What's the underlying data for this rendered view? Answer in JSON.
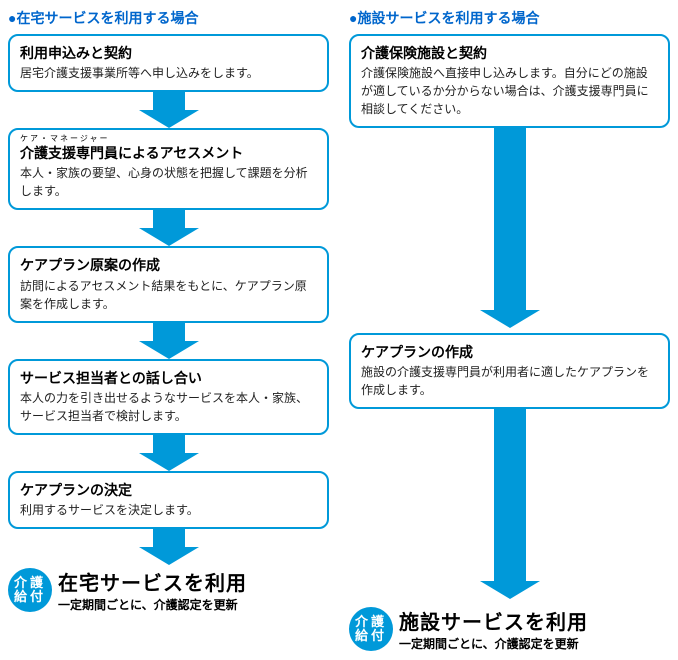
{
  "colors": {
    "blue": "#0099d9",
    "heading_blue": "#0066cc",
    "text": "#222222"
  },
  "left": {
    "heading": "●在宅サービスを利用する場合",
    "boxes": [
      {
        "title": "利用申込みと契約",
        "desc": "居宅介護支援事業所等へ申し込みをします。"
      },
      {
        "ruby": "ケア・マネージャー",
        "title_pre": "",
        "title_ruby": "介護支援専門員",
        "title_post": "によるアセスメント",
        "desc": "本人・家族の要望、心身の状態を把握して課題を分析します。"
      },
      {
        "title": "ケアプラン原案の作成",
        "desc": "訪問によるアセスメント結果をもとに、ケアプラン原案を作成します。"
      },
      {
        "title": "サービス担当者との話し合い",
        "desc": "本人の力を引き出せるようなサービスを本人・家族、サービス担当者で検討します。"
      },
      {
        "title": "ケアプランの決定",
        "desc": "利用するサービスを決定します。"
      }
    ],
    "badge": "介護\n給付",
    "concl_title": "在宅サービスを利用",
    "concl_sub": "一定期間ごとに、介護認定を更新"
  },
  "right": {
    "heading": "●施設サービスを利用する場合",
    "boxes": [
      {
        "title": "介護保険施設と契約",
        "desc": "介護保険施設へ直接申し込みします。自分にどの施設が適しているか分からない場合は、介護支援専門員に相談してください。"
      },
      {
        "title": "ケアプランの作成",
        "desc": "施設の介護支援専門員が利用者に適したケアプランを作成します。"
      }
    ],
    "badge": "介護\n給付",
    "concl_title": "施設サービスを利用",
    "concl_sub": "一定期間ごとに、介護認定を更新"
  },
  "arrow": {
    "short_height": 36,
    "long1_height": 200,
    "long2_height": 190,
    "width": 60,
    "stem_width": 32,
    "color": "#0099d9"
  }
}
